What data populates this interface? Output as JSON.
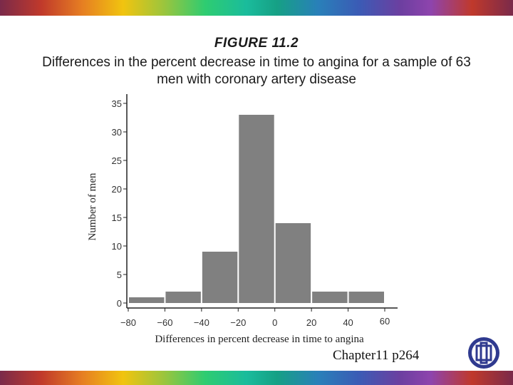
{
  "header": {
    "figure_label": "FIGURE 11.2",
    "caption_line1": "Differences in the percent decrease in time to angina for a sample of 63",
    "caption_line2": "men with coronary artery disease"
  },
  "footer": {
    "label": "Chapter11 p264"
  },
  "colors": {
    "bar": "#808080",
    "axis": "#222222"
  },
  "icons": {
    "logo": "university-seal-icon"
  },
  "chart_data": {
    "type": "bar",
    "title": "",
    "xlabel": "Differences in percent decrease in time to angina",
    "ylabel": "Number of men",
    "bins": [
      {
        "from": -80,
        "to": -60,
        "count": 1
      },
      {
        "from": -60,
        "to": -40,
        "count": 2
      },
      {
        "from": -40,
        "to": -20,
        "count": 9
      },
      {
        "from": -20,
        "to": 0,
        "count": 33
      },
      {
        "from": 0,
        "to": 20,
        "count": 14
      },
      {
        "from": 20,
        "to": 40,
        "count": 2
      },
      {
        "from": 40,
        "to": 60,
        "count": 2
      }
    ],
    "xticks": [
      "-80",
      "-60",
      "-40",
      "-20",
      "0",
      "20",
      "40",
      "60"
    ],
    "yticks": [
      "0",
      "5",
      "10",
      "15",
      "20",
      "25",
      "30",
      "35"
    ],
    "xlim": [
      -80,
      60
    ],
    "ylim": [
      0,
      35
    ],
    "grid": false
  }
}
